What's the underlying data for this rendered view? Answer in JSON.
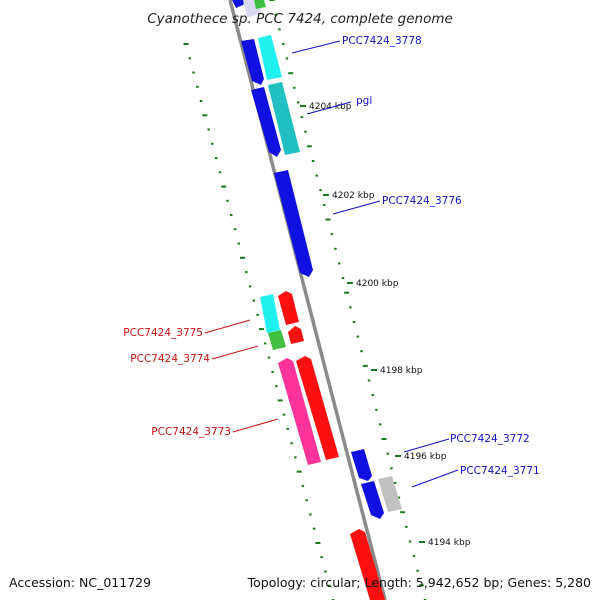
{
  "title": "Cyanothece sp. PCC 7424, complete genome",
  "footer": {
    "accession": "Accession: NC_011729",
    "summary": "Topology: circular; Length: 5,942,652 bp; Genes: 5,280"
  },
  "colors": {
    "blue": "#1010e0",
    "cyan": "#20f0f0",
    "teal": "#20c0c0",
    "red": "#ff1010",
    "pink": "#ff3399",
    "green": "#40c040",
    "grey": "#c0c0c0",
    "backbone": "#8a8a8a",
    "tick": "#1a7a1a",
    "blue_label": "#1010c8",
    "red_label": "#cc1010"
  },
  "ticks": [
    {
      "label": "4204 kbp"
    },
    {
      "label": "4202 kbp"
    },
    {
      "label": "4200 kbp"
    },
    {
      "label": "4198 kbp"
    },
    {
      "label": "4196 kbp"
    },
    {
      "label": "4194 kbp"
    }
  ],
  "gene_labels": [
    {
      "id": "l3778",
      "text": "PCC7424_3778",
      "color": "blue"
    },
    {
      "id": "lpgi",
      "text": "pgi",
      "color": "blue"
    },
    {
      "id": "l3776",
      "text": "PCC7424_3776",
      "color": "blue"
    },
    {
      "id": "l3775",
      "text": "PCC7424_3775",
      "color": "red"
    },
    {
      "id": "l3774",
      "text": "PCC7424_3774",
      "color": "red"
    },
    {
      "id": "l3773",
      "text": "PCC7424_3773",
      "color": "red"
    },
    {
      "id": "l3772",
      "text": "PCC7424_3772",
      "color": "blue"
    },
    {
      "id": "l3771",
      "text": "PCC7424_3771",
      "color": "blue"
    }
  ]
}
